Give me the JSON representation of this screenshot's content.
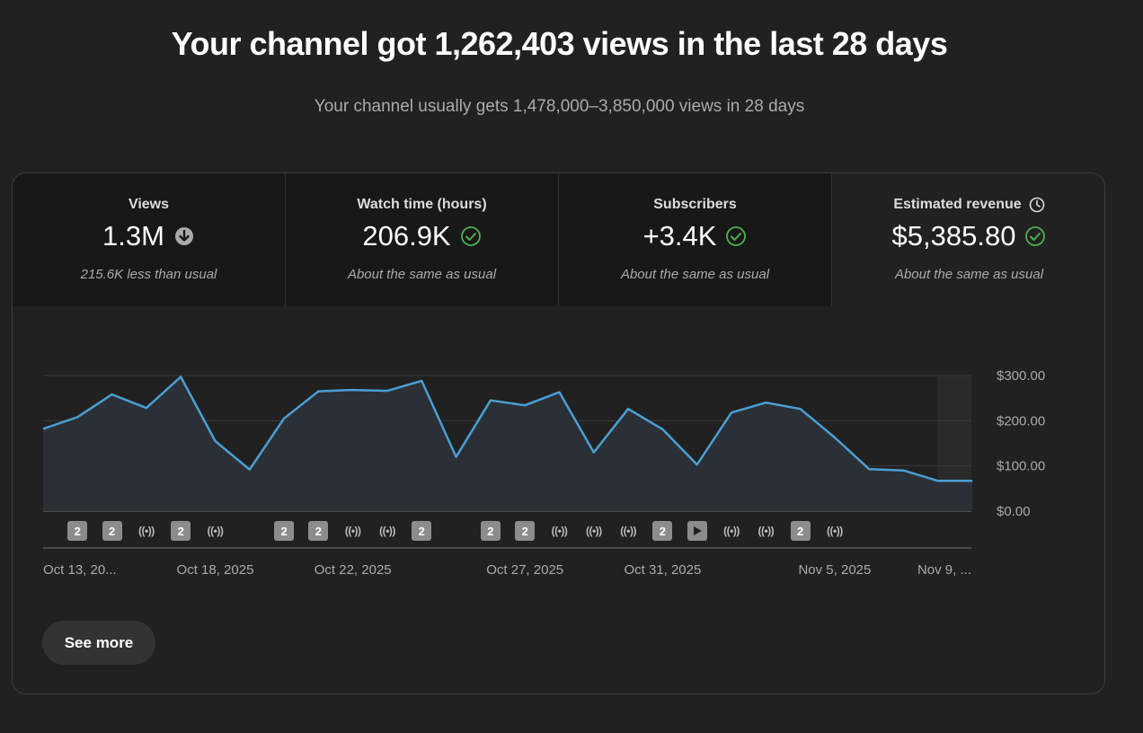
{
  "header": {
    "headline": "Your channel got 1,262,403 views in the last 28 days",
    "subhead": "Your channel usually gets 1,478,000–3,850,000 views in 28 days"
  },
  "metrics": [
    {
      "title": "Views",
      "value": "1.3M",
      "note": "215.6K less than usual",
      "status_icon": "down-arrow-circle-icon"
    },
    {
      "title": "Watch time (hours)",
      "value": "206.9K",
      "note": "About the same as usual",
      "status_icon": "check-circle-icon"
    },
    {
      "title": "Subscribers",
      "value": "+3.4K",
      "note": "About the same as usual",
      "status_icon": "check-circle-icon"
    },
    {
      "title": "Estimated revenue",
      "value": "$5,385.80",
      "note": "About the same as usual",
      "status_icon": "check-circle-icon",
      "title_icon": "clock-icon",
      "selected": true
    }
  ],
  "colors": {
    "line": "#4a9fd4",
    "check": "#4caf50",
    "background": "#212121"
  },
  "chart_data": {
    "type": "area",
    "ylabel_ticks": [
      "$300.00",
      "$200.00",
      "$100.00",
      "$0.00"
    ],
    "ylim": [
      0,
      300
    ],
    "x_tick_labels": [
      "Oct 13, 20...",
      "Oct 18, 2025",
      "Oct 22, 2025",
      "Oct 27, 2025",
      "Oct 31, 2025",
      "Nov 5, 2025",
      "Nov 9, ..."
    ],
    "x_tick_days": [
      0,
      5,
      9,
      14,
      18,
      23,
      27
    ],
    "series": [
      {
        "values": [
          182,
          208,
          258,
          228,
          297,
          155,
          92,
          205,
          265,
          268,
          266,
          288,
          120,
          245,
          234,
          263,
          130,
          226,
          181,
          103,
          218,
          240,
          226,
          163,
          93,
          90,
          67,
          67
        ]
      }
    ],
    "grid": true,
    "markers": [
      {
        "day": 1,
        "kind": "badge",
        "label": "2"
      },
      {
        "day": 2,
        "kind": "badge",
        "label": "2"
      },
      {
        "day": 3,
        "kind": "live",
        "label": "((•))"
      },
      {
        "day": 4,
        "kind": "badge",
        "label": "2"
      },
      {
        "day": 5,
        "kind": "live",
        "label": "((•))"
      },
      {
        "day": 7,
        "kind": "badge",
        "label": "2"
      },
      {
        "day": 8,
        "kind": "badge",
        "label": "2"
      },
      {
        "day": 9,
        "kind": "live",
        "label": "((•))"
      },
      {
        "day": 10,
        "kind": "live",
        "label": "((•))"
      },
      {
        "day": 11,
        "kind": "badge",
        "label": "2"
      },
      {
        "day": 13,
        "kind": "badge",
        "label": "2"
      },
      {
        "day": 14,
        "kind": "badge",
        "label": "2"
      },
      {
        "day": 15,
        "kind": "live",
        "label": "((•))"
      },
      {
        "day": 16,
        "kind": "live",
        "label": "((•))"
      },
      {
        "day": 17,
        "kind": "live",
        "label": "((•))"
      },
      {
        "day": 18,
        "kind": "badge",
        "label": "2"
      },
      {
        "day": 19,
        "kind": "play",
        "label": ""
      },
      {
        "day": 20,
        "kind": "live",
        "label": "((•))"
      },
      {
        "day": 21,
        "kind": "live",
        "label": "((•))"
      },
      {
        "day": 22,
        "kind": "badge",
        "label": "2"
      },
      {
        "day": 23,
        "kind": "live",
        "label": "((•))"
      }
    ]
  },
  "actions": {
    "see_more": "See more"
  }
}
